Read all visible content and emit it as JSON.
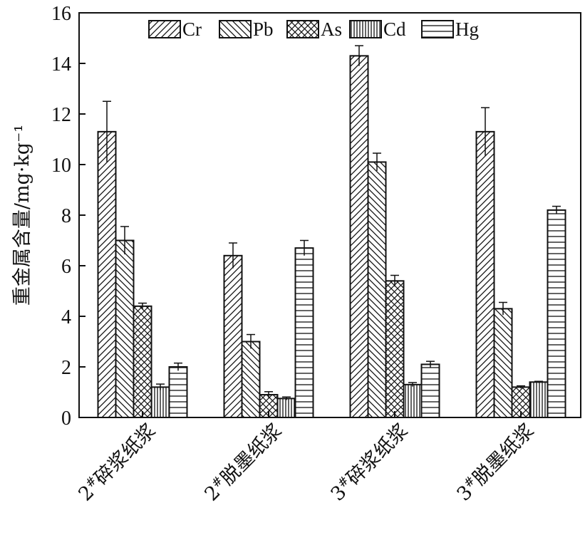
{
  "chart_data": {
    "type": "bar",
    "categories": [
      "2#碎浆纸浆",
      "2#脱墨纸浆",
      "3#碎浆纸浆",
      "3#脱墨纸浆"
    ],
    "series": [
      {
        "name": "Cr",
        "pattern": "diag-right",
        "values": [
          11.3,
          6.4,
          14.3,
          11.3
        ],
        "errors": [
          1.2,
          0.5,
          0.4,
          0.95
        ]
      },
      {
        "name": "Pb",
        "pattern": "diag-left",
        "values": [
          7.0,
          3.0,
          10.1,
          4.3
        ],
        "errors": [
          0.55,
          0.28,
          0.35,
          0.25
        ]
      },
      {
        "name": "As",
        "pattern": "crosshatch",
        "values": [
          4.4,
          0.9,
          5.4,
          1.2
        ],
        "errors": [
          0.12,
          0.12,
          0.22,
          0.05
        ]
      },
      {
        "name": "Cd",
        "pattern": "vertical",
        "values": [
          1.2,
          0.75,
          1.3,
          1.4
        ],
        "errors": [
          0.12,
          0.06,
          0.08,
          0.03
        ]
      },
      {
        "name": "Hg",
        "pattern": "horizontal",
        "values": [
          2.0,
          6.7,
          2.1,
          8.2
        ],
        "errors": [
          0.15,
          0.3,
          0.12,
          0.15
        ]
      }
    ],
    "title": "",
    "xlabel": "",
    "ylabel": "重金属含量/mg·kg⁻¹",
    "ylim": [
      0,
      16
    ],
    "yticks": [
      0,
      2,
      4,
      6,
      8,
      10,
      12,
      14,
      16
    ],
    "grid": false,
    "legend_position": "top"
  }
}
